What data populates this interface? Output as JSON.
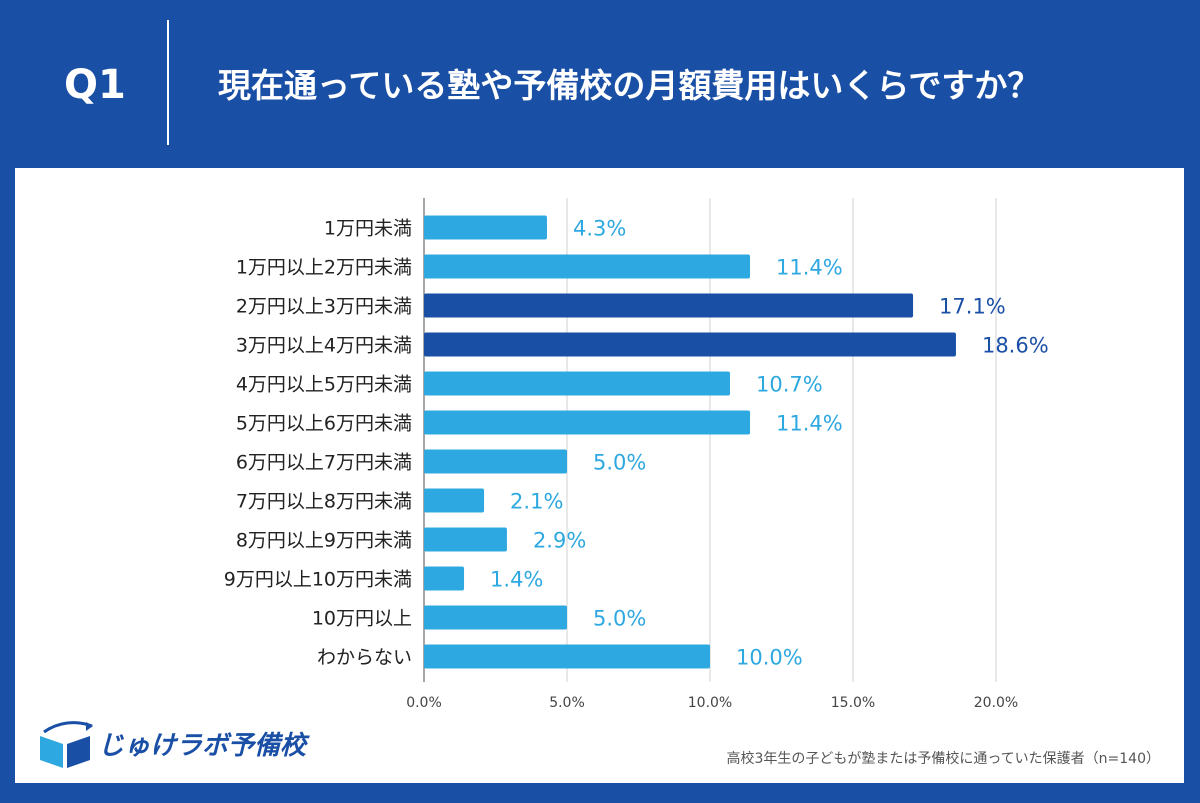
{
  "header": {
    "q_label": "Q1",
    "title": "現在通っている塾や予備校の月額費用はいくらですか？"
  },
  "footer": {
    "logo_text": "じゅけラボ予備校",
    "note": "高校3年生の子どもが塾または予備校に通っていた保護者（n=140）"
  },
  "colors": {
    "header_bg": "#1a4fa6",
    "bar_normal": "#2ea8e0",
    "bar_highlight": "#1a4fa6",
    "label_normal": "#2ea8e0",
    "label_highlight": "#1a4fa6",
    "grid": "#d0d0d0"
  },
  "chart_data": {
    "type": "bar",
    "orientation": "horizontal",
    "title": "",
    "xlabel": "",
    "ylabel": "",
    "xlim": [
      0,
      20
    ],
    "x_ticks": [
      0,
      5,
      10,
      15,
      20
    ],
    "x_tick_labels": [
      "0.0%",
      "5.0%",
      "10.0%",
      "15.0%",
      "20.0%"
    ],
    "grid": "vertical",
    "categories": [
      "1万円未満",
      "1万円以上2万円未満",
      "2万円以上3万円未満",
      "3万円以上4万円未満",
      "4万円以上5万円未満",
      "5万円以上6万円未満",
      "6万円以上7万円未満",
      "7万円以上8万円未満",
      "8万円以上9万円未満",
      "9万円以上10万円未満",
      "10万円以上",
      "わからない"
    ],
    "values": [
      4.3,
      11.4,
      17.1,
      18.6,
      10.7,
      11.4,
      5.0,
      2.1,
      2.9,
      1.4,
      5.0,
      10.0
    ],
    "value_labels": [
      "4.3%",
      "11.4%",
      "17.1%",
      "18.6%",
      "10.7%",
      "11.4%",
      "5.0%",
      "2.1%",
      "2.9%",
      "1.4%",
      "5.0%",
      "10.0%"
    ],
    "highlighted": [
      false,
      false,
      true,
      true,
      false,
      false,
      false,
      false,
      false,
      false,
      false,
      false
    ]
  }
}
